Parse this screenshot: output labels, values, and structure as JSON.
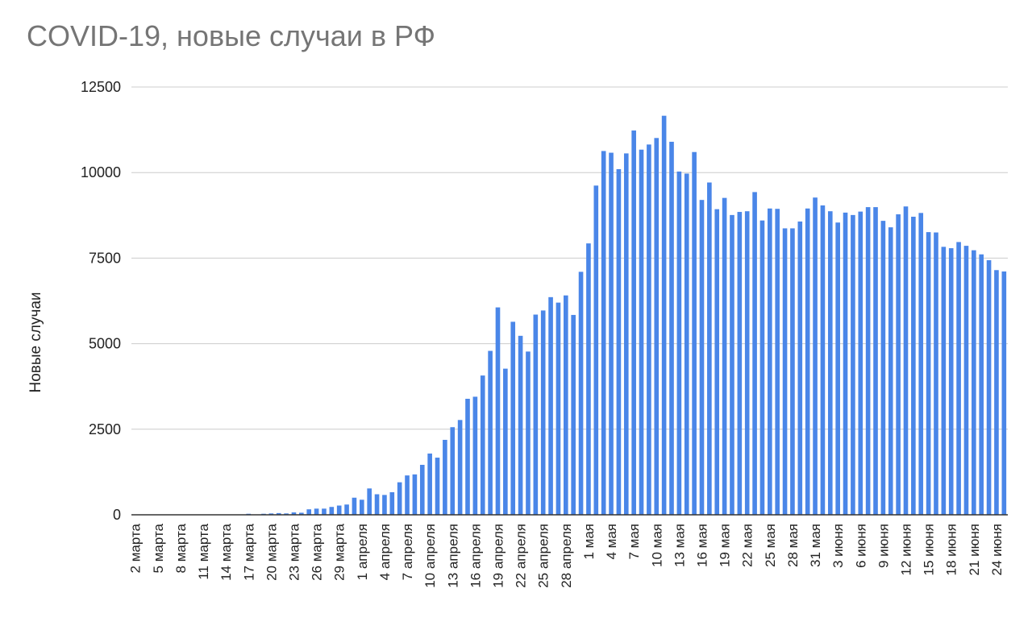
{
  "chart_data": {
    "type": "bar",
    "title": "COVID-19, новые случаи в РФ",
    "ylabel": "Новые случаи",
    "xlabel": "",
    "ylim": [
      0,
      12500
    ],
    "yticks": [
      0,
      2500,
      5000,
      7500,
      10000,
      12500
    ],
    "grid": true,
    "bar_color": "#4a86e8",
    "categories": [
      "2 марта",
      "3 марта",
      "4 марта",
      "5 марта",
      "6 марта",
      "7 марта",
      "8 марта",
      "9 марта",
      "10 марта",
      "11 марта",
      "12 марта",
      "13 марта",
      "14 марта",
      "15 марта",
      "16 марта",
      "17 марта",
      "18 марта",
      "19 марта",
      "20 марта",
      "21 марта",
      "22 марта",
      "23 марта",
      "24 марта",
      "25 марта",
      "26 марта",
      "27 марта",
      "28 марта",
      "29 марта",
      "30 марта",
      "31 марта",
      "1 апреля",
      "2 апреля",
      "3 апреля",
      "4 апреля",
      "5 апреля",
      "6 апреля",
      "7 апреля",
      "8 апреля",
      "9 апреля",
      "10 апреля",
      "11 апреля",
      "12 апреля",
      "13 апреля",
      "14 апреля",
      "15 апреля",
      "16 апреля",
      "17 апреля",
      "18 апреля",
      "19 апреля",
      "20 апреля",
      "21 апреля",
      "22 апреля",
      "23 апреля",
      "24 апреля",
      "25 апреля",
      "26 апреля",
      "27 апреля",
      "28 апреля",
      "29 апреля",
      "30 апреля",
      "1 мая",
      "2 мая",
      "3 мая",
      "4 мая",
      "5 мая",
      "6 мая",
      "7 мая",
      "8 мая",
      "9 мая",
      "10 мая",
      "11 мая",
      "12 мая",
      "13 мая",
      "14 мая",
      "15 мая",
      "16 мая",
      "17 мая",
      "18 мая",
      "19 мая",
      "20 мая",
      "21 мая",
      "22 мая",
      "23 мая",
      "24 мая",
      "25 мая",
      "26 мая",
      "27 мая",
      "28 мая",
      "29 мая",
      "30 мая",
      "31 мая",
      "1 июня",
      "2 июня",
      "3 июня",
      "4 июня",
      "5 июня",
      "6 июня",
      "7 июня",
      "8 июня",
      "9 июня",
      "10 июня",
      "11 июня",
      "12 июня",
      "13 июня",
      "14 июня",
      "15 июня",
      "16 июня",
      "17 июня",
      "18 июня",
      "19 июня",
      "20 июня",
      "21 июня",
      "22 июня",
      "23 июня",
      "24 июня",
      "25 июня"
    ],
    "tick_labels": [
      "2 марта",
      "5 марта",
      "8 марта",
      "11 марта",
      "14 марта",
      "17 марта",
      "20 марта",
      "23 марта",
      "26 марта",
      "29 марта",
      "1 апреля",
      "4 апреля",
      "7 апреля",
      "10 апреля",
      "13 апреля",
      "16 апреля",
      "19 апреля",
      "22 апреля",
      "25 апреля",
      "28 апреля",
      "1 мая",
      "4 мая",
      "7 мая",
      "10 мая",
      "13 мая",
      "16 мая",
      "19 мая",
      "22 мая",
      "25 мая",
      "28 мая",
      "31 мая",
      "3 июня",
      "6 июня",
      "9 июня",
      "12 июня",
      "15 июня",
      "18 июня",
      "21 июня",
      "24 июня"
    ],
    "values": [
      2,
      0,
      0,
      0,
      0,
      0,
      0,
      0,
      0,
      0,
      0,
      0,
      0,
      0,
      0,
      30,
      5,
      30,
      40,
      50,
      40,
      70,
      60,
      160,
      180,
      180,
      230,
      270,
      300,
      500,
      440,
      770,
      600,
      580,
      660,
      950,
      1150,
      1180,
      1460,
      1790,
      1670,
      2190,
      2560,
      2770,
      3390,
      3450,
      4070,
      4790,
      6060,
      4270,
      5640,
      5230,
      4770,
      5850,
      5970,
      6360,
      6200,
      6410,
      5840,
      7100,
      7930,
      9620,
      10630,
      10580,
      10100,
      10560,
      11230,
      10670,
      10820,
      11010,
      11660,
      10900,
      10030,
      9970,
      10600,
      9200,
      9710,
      8930,
      9260,
      8760,
      8850,
      8870,
      9430,
      8600,
      8950,
      8940,
      8370,
      8370,
      8570,
      8950,
      9270,
      9040,
      8870,
      8540,
      8830,
      8760,
      8860,
      8990,
      8990,
      8590,
      8400,
      8780,
      9010,
      8710,
      8820,
      8260,
      8250,
      7830,
      7790,
      7970,
      7860,
      7730,
      7610,
      7440,
      7150,
      7110
    ]
  }
}
